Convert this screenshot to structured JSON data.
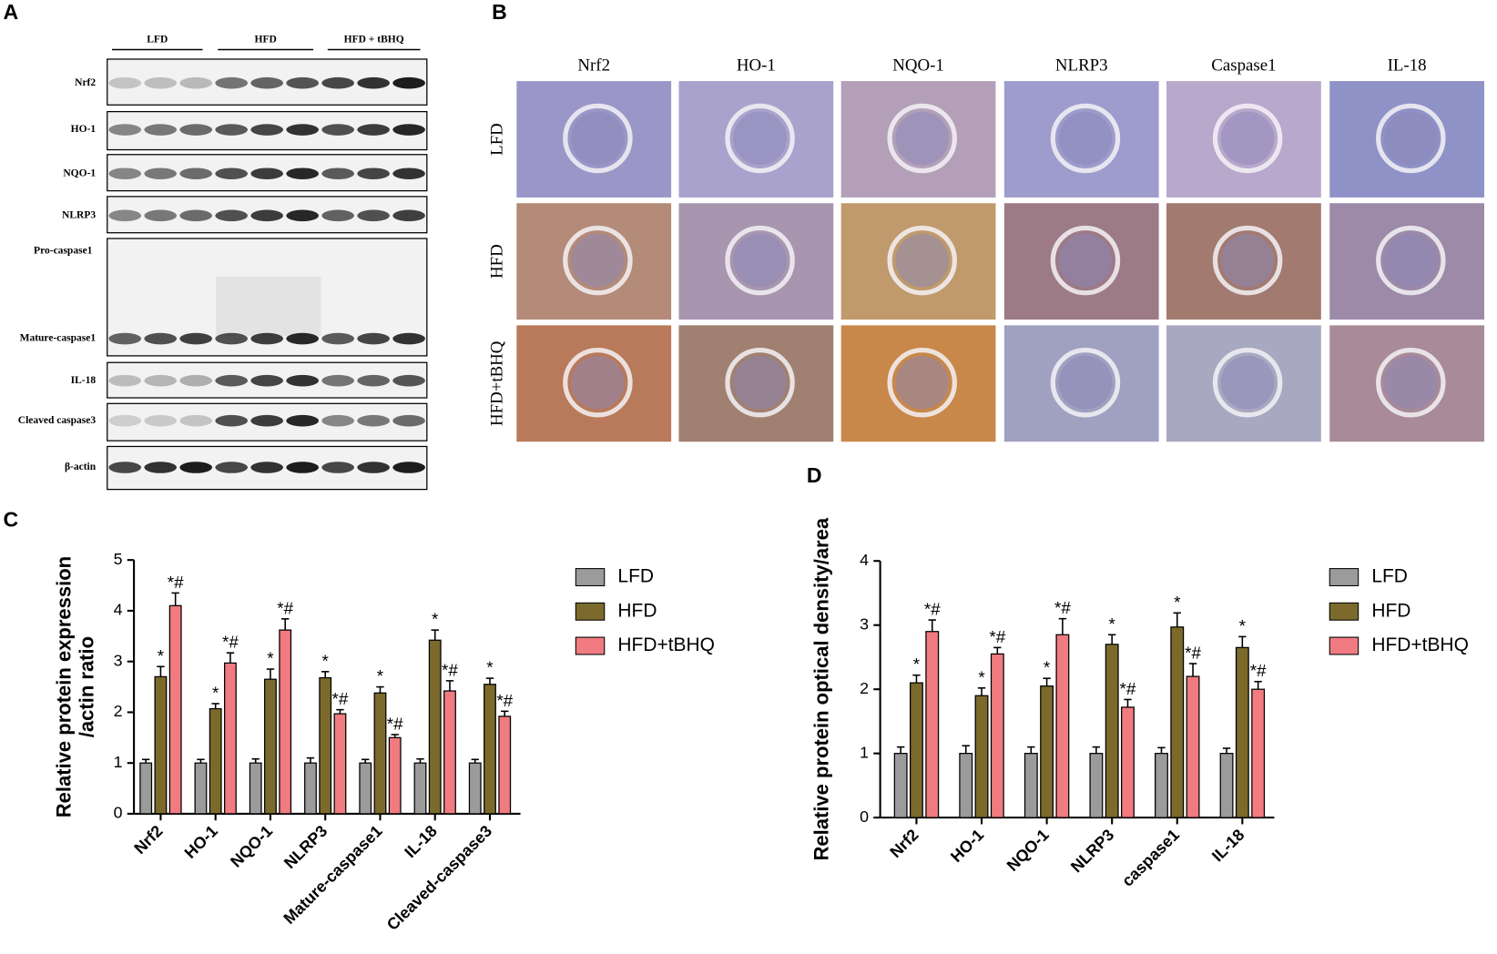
{
  "panels": [
    "A",
    "B",
    "C",
    "D"
  ],
  "blot": {
    "groups": [
      "LFD",
      "HFD",
      "HFD + tBHQ"
    ],
    "rows": [
      "Nrf2",
      "HO-1",
      "NQO-1",
      "NLRP3",
      "Pro-caspase1",
      "Mature-caspase1",
      "IL-18",
      "Cleaved caspase3",
      "β-actin"
    ]
  },
  "histology": {
    "columns": [
      "Nrf2",
      "HO-1",
      "NQO-1",
      "NLRP3",
      "Caspase1",
      "IL-18"
    ],
    "rows": [
      "LFD",
      "HFD",
      "HFD+tBHQ"
    ]
  },
  "chart_data": [
    {
      "type": "bar",
      "y_label": [
        "Relative protein expression",
        "/actin ratio"
      ],
      "categories": [
        "Nrf2",
        "HO-1",
        "NQO-1",
        "NLRP3",
        "Mature-caspase1",
        "IL-18",
        "Cleaved-caspase3"
      ],
      "ylim": [
        0,
        5
      ],
      "yticks": [
        0,
        1,
        2,
        3,
        4,
        5
      ],
      "series": [
        {
          "name": "LFD",
          "color": "#9b9b9b",
          "values": [
            1,
            1,
            1,
            1,
            1,
            1,
            1
          ],
          "errors": [
            0.07,
            0.07,
            0.08,
            0.1,
            0.07,
            0.08,
            0.07
          ]
        },
        {
          "name": "HFD",
          "color": "#7b6a2b",
          "values": [
            2.7,
            2.07,
            2.65,
            2.68,
            2.38,
            3.42,
            2.55
          ],
          "errors": [
            0.2,
            0.1,
            0.2,
            0.12,
            0.12,
            0.2,
            0.12
          ],
          "annotations": [
            "*",
            "*",
            "*",
            "*",
            "*",
            "*",
            "*"
          ]
        },
        {
          "name": "HFD+tBHQ",
          "color": "#f07b80",
          "values": [
            4.1,
            2.97,
            3.62,
            1.97,
            1.5,
            2.42,
            1.92
          ],
          "errors": [
            0.25,
            0.2,
            0.22,
            0.08,
            0.06,
            0.2,
            0.1
          ],
          "annotations": [
            "*#",
            "*#",
            "*#",
            "*#",
            "*#",
            "*#",
            "*#"
          ]
        }
      ]
    },
    {
      "type": "bar",
      "y_label": [
        "Relative protein optical density/area"
      ],
      "categories": [
        "Nrf2",
        "HO-1",
        "NQO-1",
        "NLRP3",
        "caspase1",
        "IL-18"
      ],
      "ylim": [
        0,
        4
      ],
      "yticks": [
        0,
        1,
        2,
        3,
        4
      ],
      "series": [
        {
          "name": "LFD",
          "color": "#9b9b9b",
          "values": [
            1,
            1,
            1,
            1,
            1,
            1
          ],
          "errors": [
            0.1,
            0.12,
            0.1,
            0.1,
            0.09,
            0.08
          ]
        },
        {
          "name": "HFD",
          "color": "#7b6a2b",
          "values": [
            2.1,
            1.9,
            2.05,
            2.7,
            2.97,
            2.65
          ],
          "errors": [
            0.12,
            0.12,
            0.12,
            0.15,
            0.22,
            0.17
          ],
          "annotations": [
            "*",
            "*",
            "*",
            "*",
            "*",
            "*"
          ]
        },
        {
          "name": "HFD+tBHQ",
          "color": "#f07b80",
          "values": [
            2.9,
            2.55,
            2.85,
            1.72,
            2.2,
            2.0
          ],
          "errors": [
            0.18,
            0.1,
            0.25,
            0.12,
            0.2,
            0.12
          ],
          "annotations": [
            "*#",
            "*#",
            "*#",
            "*#",
            "*#",
            "*#"
          ]
        }
      ]
    }
  ]
}
